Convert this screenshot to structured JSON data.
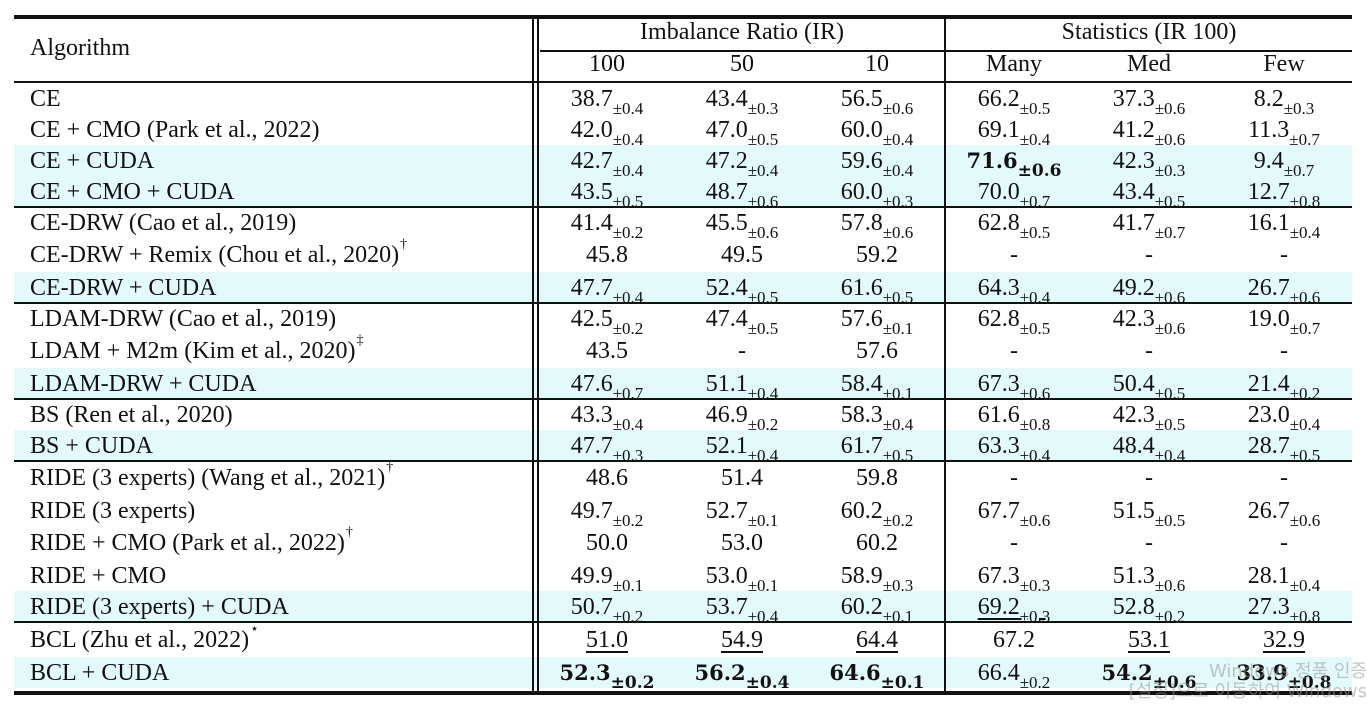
{
  "header": {
    "algorithm": "Algorithm",
    "imbalance_group": "Imbalance Ratio (IR)",
    "statistics_group": "Statistics (IR 100)",
    "columns": [
      "100",
      "50",
      "10",
      "Many",
      "Med",
      "Few"
    ]
  },
  "rows": [
    {
      "alg": "CE",
      "hl": false,
      "rule": false,
      "cells": [
        {
          "v": "38.7",
          "pm": "±0.4"
        },
        {
          "v": "43.4",
          "pm": "±0.3"
        },
        {
          "v": "56.5",
          "pm": "±0.6"
        },
        {
          "v": "66.2",
          "pm": "±0.5"
        },
        {
          "v": "37.3",
          "pm": "±0.6"
        },
        {
          "v": "8.2",
          "pm": "±0.3"
        }
      ]
    },
    {
      "alg": "CE + CMO (Park et al., 2022)",
      "hl": false,
      "rule": false,
      "cells": [
        {
          "v": "42.0",
          "pm": "±0.4"
        },
        {
          "v": "47.0",
          "pm": "±0.5"
        },
        {
          "v": "60.0",
          "pm": "±0.4"
        },
        {
          "v": "69.1",
          "pm": "±0.4"
        },
        {
          "v": "41.2",
          "pm": "±0.6"
        },
        {
          "v": "11.3",
          "pm": "±0.7"
        }
      ]
    },
    {
      "alg": "CE + CUDA",
      "hl": true,
      "rule": false,
      "cells": [
        {
          "v": "42.7",
          "pm": "±0.4"
        },
        {
          "v": "47.2",
          "pm": "±0.4"
        },
        {
          "v": "59.6",
          "pm": "±0.4"
        },
        {
          "v": "71.6",
          "pm": "±0.6",
          "b": true
        },
        {
          "v": "42.3",
          "pm": "±0.3"
        },
        {
          "v": "9.4",
          "pm": "±0.7"
        }
      ]
    },
    {
      "alg": "CE + CMO + CUDA",
      "hl": true,
      "rule": false,
      "cells": [
        {
          "v": "43.5",
          "pm": "±0.5"
        },
        {
          "v": "48.7",
          "pm": "±0.6"
        },
        {
          "v": "60.0",
          "pm": "±0.3"
        },
        {
          "v": "70.0",
          "pm": "±0.7"
        },
        {
          "v": "43.4",
          "pm": "±0.5"
        },
        {
          "v": "12.7",
          "pm": "±0.8"
        }
      ]
    },
    {
      "alg": "CE-DRW (Cao et al., 2019)",
      "hl": false,
      "rule": true,
      "cells": [
        {
          "v": "41.4",
          "pm": "±0.2"
        },
        {
          "v": "45.5",
          "pm": "±0.6"
        },
        {
          "v": "57.8",
          "pm": "±0.6"
        },
        {
          "v": "62.8",
          "pm": "±0.5"
        },
        {
          "v": "41.7",
          "pm": "±0.7"
        },
        {
          "v": "16.1",
          "pm": "±0.4"
        }
      ]
    },
    {
      "alg": "CE-DRW + Remix (Chou et al., 2020)",
      "sup": "†",
      "hl": false,
      "rule": false,
      "cells": [
        {
          "v": "45.8"
        },
        {
          "v": "49.5"
        },
        {
          "v": "59.2"
        },
        {
          "v": "-"
        },
        {
          "v": "-"
        },
        {
          "v": "-"
        }
      ]
    },
    {
      "alg": "CE-DRW + CUDA",
      "hl": true,
      "rule": false,
      "cells": [
        {
          "v": "47.7",
          "pm": "±0.4"
        },
        {
          "v": "52.4",
          "pm": "±0.5"
        },
        {
          "v": "61.6",
          "pm": "±0.5"
        },
        {
          "v": "64.3",
          "pm": "±0.4"
        },
        {
          "v": "49.2",
          "pm": "±0.6"
        },
        {
          "v": "26.7",
          "pm": "±0.6"
        }
      ]
    },
    {
      "alg": "LDAM-DRW (Cao et al., 2019)",
      "hl": false,
      "rule": true,
      "cells": [
        {
          "v": "42.5",
          "pm": "±0.2"
        },
        {
          "v": "47.4",
          "pm": "±0.5"
        },
        {
          "v": "57.6",
          "pm": "±0.1"
        },
        {
          "v": "62.8",
          "pm": "±0.5"
        },
        {
          "v": "42.3",
          "pm": "±0.6"
        },
        {
          "v": "19.0",
          "pm": "±0.7"
        }
      ]
    },
    {
      "alg": "LDAM + M2m (Kim et al., 2020)",
      "sup": "‡",
      "hl": false,
      "rule": false,
      "cells": [
        {
          "v": "43.5"
        },
        {
          "v": "-"
        },
        {
          "v": "57.6"
        },
        {
          "v": "-"
        },
        {
          "v": "-"
        },
        {
          "v": "-"
        }
      ]
    },
    {
      "alg": "LDAM-DRW + CUDA",
      "hl": true,
      "rule": false,
      "cells": [
        {
          "v": "47.6",
          "pm": "±0.7"
        },
        {
          "v": "51.1",
          "pm": "±0.4"
        },
        {
          "v": "58.4",
          "pm": "±0.1"
        },
        {
          "v": "67.3",
          "pm": "±0.6"
        },
        {
          "v": "50.4",
          "pm": "±0.5"
        },
        {
          "v": "21.4",
          "pm": "±0.2"
        }
      ]
    },
    {
      "alg": "BS (Ren et al., 2020)",
      "hl": false,
      "rule": true,
      "cells": [
        {
          "v": "43.3",
          "pm": "±0.4"
        },
        {
          "v": "46.9",
          "pm": "±0.2"
        },
        {
          "v": "58.3",
          "pm": "±0.4"
        },
        {
          "v": "61.6",
          "pm": "±0.8"
        },
        {
          "v": "42.3",
          "pm": "±0.5"
        },
        {
          "v": "23.0",
          "pm": "±0.4"
        }
      ]
    },
    {
      "alg": "BS + CUDA",
      "hl": true,
      "rule": false,
      "cells": [
        {
          "v": "47.7",
          "pm": "±0.3"
        },
        {
          "v": "52.1",
          "pm": "±0.4"
        },
        {
          "v": "61.7",
          "pm": "±0.5"
        },
        {
          "v": "63.3",
          "pm": "±0.4"
        },
        {
          "v": "48.4",
          "pm": "±0.4"
        },
        {
          "v": "28.7",
          "pm": "±0.5"
        }
      ]
    },
    {
      "alg": "RIDE (3 experts) (Wang et al., 2021)",
      "sup": "†",
      "hl": false,
      "rule": true,
      "cells": [
        {
          "v": "48.6"
        },
        {
          "v": "51.4"
        },
        {
          "v": "59.8"
        },
        {
          "v": "-"
        },
        {
          "v": "-"
        },
        {
          "v": "-"
        }
      ]
    },
    {
      "alg": "RIDE (3 experts)",
      "hl": false,
      "rule": false,
      "cells": [
        {
          "v": "49.7",
          "pm": "±0.2"
        },
        {
          "v": "52.7",
          "pm": "±0.1"
        },
        {
          "v": "60.2",
          "pm": "±0.2"
        },
        {
          "v": "67.7",
          "pm": "±0.6"
        },
        {
          "v": "51.5",
          "pm": "±0.5"
        },
        {
          "v": "26.7",
          "pm": "±0.6"
        }
      ]
    },
    {
      "alg": "RIDE + CMO (Park et al., 2022)",
      "sup": "†",
      "hl": false,
      "rule": false,
      "cells": [
        {
          "v": "50.0"
        },
        {
          "v": "53.0"
        },
        {
          "v": "60.2"
        },
        {
          "v": "-"
        },
        {
          "v": "-"
        },
        {
          "v": "-"
        }
      ]
    },
    {
      "alg": "RIDE + CMO",
      "hl": false,
      "rule": false,
      "cells": [
        {
          "v": "49.9",
          "pm": "±0.1"
        },
        {
          "v": "53.0",
          "pm": "±0.1"
        },
        {
          "v": "58.9",
          "pm": "±0.3"
        },
        {
          "v": "67.3",
          "pm": "±0.3"
        },
        {
          "v": "51.3",
          "pm": "±0.6"
        },
        {
          "v": "28.1",
          "pm": "±0.4"
        }
      ]
    },
    {
      "alg": "RIDE (3 experts) + CUDA",
      "hl": true,
      "rule": false,
      "cells": [
        {
          "v": "50.7",
          "pm": "±0.2"
        },
        {
          "v": "53.7",
          "pm": "±0.4"
        },
        {
          "v": "60.2",
          "pm": "±0.1"
        },
        {
          "v": "69.2",
          "pm": "±0.3",
          "u": true
        },
        {
          "v": "52.8",
          "pm": "±0.2"
        },
        {
          "v": "27.3",
          "pm": "±0.8"
        }
      ]
    },
    {
      "alg": "BCL (Zhu et al., 2022)",
      "sup": "⋆",
      "hl": false,
      "rule": true,
      "cells": [
        {
          "v": "51.0",
          "u": true
        },
        {
          "v": "54.9",
          "u": true
        },
        {
          "v": "64.4",
          "u": true
        },
        {
          "v": "67.2"
        },
        {
          "v": "53.1",
          "u": true
        },
        {
          "v": "32.9",
          "u": true
        }
      ]
    },
    {
      "alg": "BCL + CUDA",
      "hl": true,
      "rule": false,
      "cells": [
        {
          "v": "52.3",
          "pm": "±0.2",
          "b": true
        },
        {
          "v": "56.2",
          "pm": "±0.4",
          "b": true
        },
        {
          "v": "64.6",
          "pm": "±0.1",
          "b": true
        },
        {
          "v": "66.4",
          "pm": "±0.2"
        },
        {
          "v": "54.2",
          "pm": "±0.6",
          "b": true
        },
        {
          "v": "33.9",
          "pm": "±0.8",
          "b": true
        }
      ]
    }
  ],
  "watermark": {
    "line1": "Windows 정품 인증",
    "line2": "[설정]으로 이동하여 Windows"
  }
}
